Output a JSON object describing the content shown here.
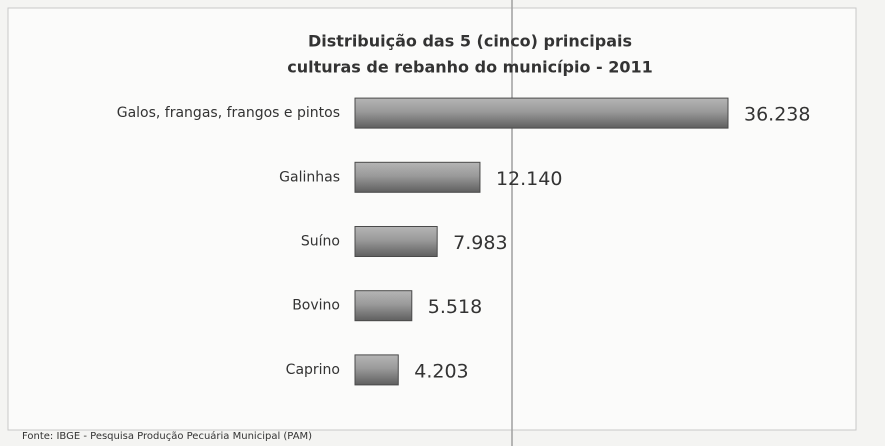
{
  "chart_data": {
    "type": "bar",
    "orientation": "horizontal",
    "title": [
      "Distribuição das 5 (cinco) principais",
      "culturas de rebanho do município - 2011"
    ],
    "categories": [
      "Galos, frangas, frangos e pintos",
      "Galinhas",
      "Suíno",
      "Bovino",
      "Caprino"
    ],
    "values": [
      36238,
      12140,
      7983,
      5518,
      4203
    ],
    "value_labels": [
      "36.238",
      "12.140",
      "7.983",
      "5.518",
      "4.203"
    ],
    "color": "#8a8a8a",
    "source": "Fonte: IBGE - Pesquisa Produção Pecuária Municipal (PAM)"
  }
}
